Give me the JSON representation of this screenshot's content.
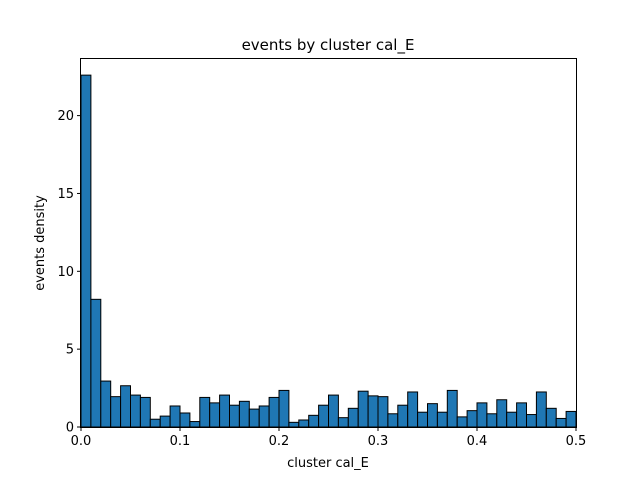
{
  "chart_data": {
    "type": "bar",
    "title": "events by cluster cal_E",
    "xlabel": "cluster cal_E",
    "ylabel": "events density",
    "xlim": [
      0,
      0.5
    ],
    "ylim": [
      0,
      23.7
    ],
    "bin_width": 0.01,
    "bin_start": 0.0,
    "bar_color": "#1f77b4",
    "edge_color": "#000000",
    "xticks": [
      {
        "value": 0.0,
        "label": "0.0"
      },
      {
        "value": 0.1,
        "label": "0.1"
      },
      {
        "value": 0.2,
        "label": "0.2"
      },
      {
        "value": 0.3,
        "label": "0.3"
      },
      {
        "value": 0.4,
        "label": "0.4"
      },
      {
        "value": 0.5,
        "label": "0.5"
      }
    ],
    "yticks": [
      {
        "value": 0,
        "label": "0"
      },
      {
        "value": 5,
        "label": "5"
      },
      {
        "value": 10,
        "label": "10"
      },
      {
        "value": 15,
        "label": "15"
      },
      {
        "value": 20,
        "label": "20"
      }
    ],
    "values": [
      22.6,
      8.2,
      2.95,
      1.95,
      2.65,
      2.05,
      1.9,
      0.5,
      0.7,
      1.35,
      0.9,
      0.35,
      1.9,
      1.55,
      2.05,
      1.4,
      1.65,
      1.15,
      1.35,
      1.9,
      2.35,
      0.3,
      0.45,
      0.75,
      1.4,
      2.05,
      0.6,
      1.2,
      2.3,
      2.0,
      1.95,
      0.85,
      1.4,
      2.25,
      0.95,
      1.5,
      0.95,
      2.35,
      0.65,
      1.05,
      1.55,
      0.85,
      1.75,
      0.95,
      1.55,
      0.8,
      2.25,
      1.2,
      0.55,
      1.0
    ]
  }
}
